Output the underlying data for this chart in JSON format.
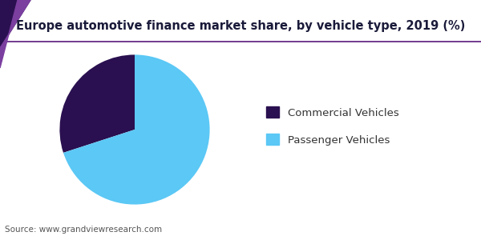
{
  "title": "Europe automotive finance market share, by vehicle type, 2019 (%)",
  "labels": [
    "Commercial Vehicles",
    "Passenger Vehicles"
  ],
  "values": [
    30,
    70
  ],
  "colors": [
    "#2a1050",
    "#5bc8f5"
  ],
  "legend_labels": [
    "Commercial Vehicles",
    "Passenger Vehicles"
  ],
  "source_text": "Source: www.grandviewresearch.com",
  "title_fontsize": 10.5,
  "legend_fontsize": 9.5,
  "source_fontsize": 7.5,
  "bg_color": "#ffffff",
  "header_line_color": "#5a1a7a",
  "startangle": 90
}
